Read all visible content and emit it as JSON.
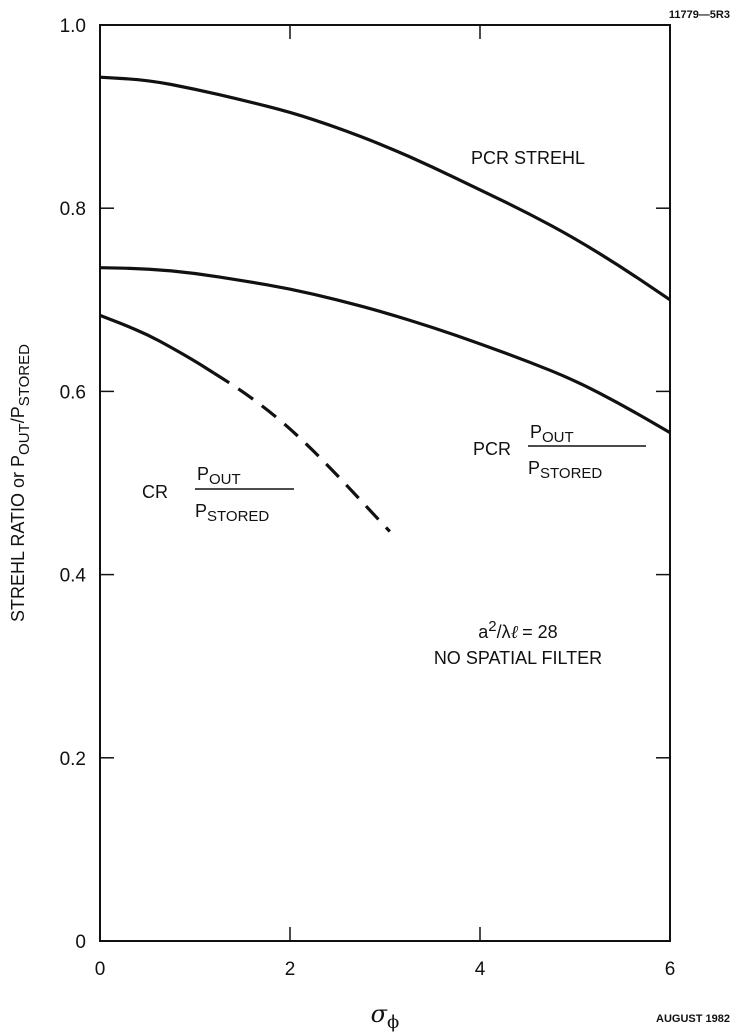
{
  "figure_id": "11779—5R3",
  "date": "AUGUST 1982",
  "chart_data": {
    "type": "line",
    "xlabel": "σ",
    "xlabel_sub": "ϕ",
    "ylabel": {
      "prefix": "STREHL RATIO or P",
      "sub1": "OUT",
      "mid": "/P",
      "sub2": "STORED"
    },
    "xlim": [
      0,
      6
    ],
    "ylim": [
      0,
      1.0
    ],
    "x_ticks": [
      0,
      2,
      4,
      6
    ],
    "x_tick_labels": [
      "0",
      "2",
      "4",
      "6"
    ],
    "y_ticks": [
      0,
      0.2,
      0.4,
      0.6,
      0.8,
      1.0
    ],
    "y_tick_labels": [
      "0",
      "0.2",
      "0.4",
      "0.6",
      "0.8",
      "1.0"
    ],
    "series": [
      {
        "key": "pcr_strehl",
        "label": "PCR STREHL",
        "style": "solid",
        "x": [
          0,
          0.5,
          1,
          1.5,
          2,
          2.5,
          3,
          3.5,
          4,
          4.5,
          5,
          5.5,
          6
        ],
        "y": [
          0.943,
          0.94,
          0.93,
          0.918,
          0.905,
          0.888,
          0.868,
          0.845,
          0.82,
          0.795,
          0.767,
          0.735,
          0.7
        ]
      },
      {
        "key": "pcr_pout",
        "label_prefix": "PCR",
        "label_num": "P",
        "label_num_sub": "OUT",
        "label_den": "P",
        "label_den_sub": "STORED",
        "style": "solid",
        "x": [
          0,
          0.5,
          1,
          1.5,
          2,
          2.5,
          3,
          3.5,
          4,
          4.5,
          5,
          5.5,
          6
        ],
        "y": [
          0.735,
          0.734,
          0.729,
          0.721,
          0.712,
          0.7,
          0.686,
          0.67,
          0.652,
          0.633,
          0.612,
          0.585,
          0.555
        ]
      },
      {
        "key": "cr_pout",
        "label_prefix": "CR",
        "label_num": "P",
        "label_num_sub": "OUT",
        "label_den": "P",
        "label_den_sub": "STORED",
        "style": "solid_then_dashed",
        "dash_start": 1.2,
        "x": [
          0,
          0.25,
          0.5,
          0.75,
          1.0,
          1.2,
          1.5,
          1.8,
          2.1,
          2.4,
          2.7,
          3.05
        ],
        "y": [
          0.683,
          0.673,
          0.662,
          0.648,
          0.633,
          0.62,
          0.6,
          0.577,
          0.55,
          0.519,
          0.486,
          0.447
        ]
      }
    ],
    "annotation": {
      "line1_a": "a",
      "line1_sup": "2",
      "line1_rest": "/λ",
      "line1_ell": "ℓ",
      "line1_eq": "= 28",
      "line2": "NO SPATIAL FILTER"
    }
  }
}
